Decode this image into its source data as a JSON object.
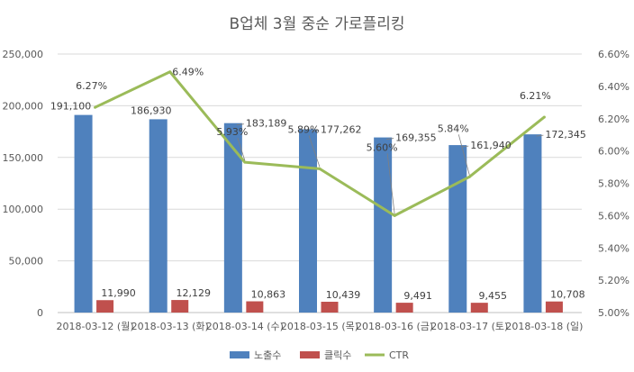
{
  "chart_data": {
    "type": "bar",
    "title": "B업체 3월 중순 가로플리킹",
    "categories": [
      "2018-03-12 (월)",
      "2018-03-13 (화)",
      "2018-03-14 (수)",
      "2018-03-15 (목)",
      "2018-03-16 (금)",
      "2018-03-17 (토)",
      "2018-03-18 (일)"
    ],
    "series": [
      {
        "name": "노출수",
        "type": "bar",
        "axis": "left",
        "color": "#4F81BD",
        "values": [
          191100,
          186930,
          183189,
          177262,
          169355,
          161940,
          172345
        ],
        "labels": [
          "191,100",
          "186,930",
          "183,189",
          "177,262",
          "169,355",
          "161,940",
          "172,345"
        ]
      },
      {
        "name": "클릭수",
        "type": "bar",
        "axis": "left",
        "color": "#C0504D",
        "values": [
          11990,
          12129,
          10863,
          10439,
          9491,
          9455,
          10708
        ],
        "labels": [
          "11,990",
          "12,129",
          "10,863",
          "10,439",
          "9,491",
          "9,455",
          "10,708"
        ]
      },
      {
        "name": "CTR",
        "type": "line",
        "axis": "right",
        "color": "#9BBB59",
        "values": [
          6.27,
          6.49,
          5.93,
          5.89,
          5.6,
          5.84,
          6.21
        ],
        "labels": [
          "6.27%",
          "6.49%",
          "5.93%",
          "5.89%",
          "5.60%",
          "5.84%",
          "6.21%"
        ]
      }
    ],
    "y_left": {
      "min": 0,
      "max": 250000,
      "ticks": [
        "0",
        "50,000",
        "100,000",
        "150,000",
        "200,000",
        "250,000"
      ]
    },
    "y_right": {
      "min": 5.0,
      "max": 6.6,
      "ticks": [
        "5.00%",
        "5.20%",
        "5.40%",
        "5.60%",
        "5.80%",
        "6.00%",
        "6.20%",
        "6.40%",
        "6.60%"
      ]
    },
    "grid": true,
    "legend": "bottom"
  }
}
